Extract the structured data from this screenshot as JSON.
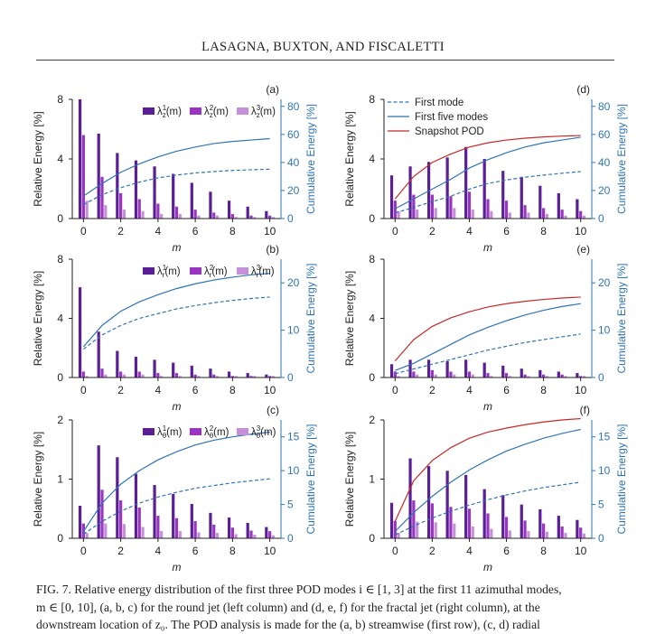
{
  "header": {
    "running_title": "LASAGNA, BUXTON, AND FISCALETTI"
  },
  "colors": {
    "lambda1": "#5b1f95",
    "lambda2": "#9a35c2",
    "lambda3": "#c690d8",
    "cumulative": "#2e74b5",
    "snapshot": "#c62828",
    "axis": "#222222"
  },
  "axes_common": {
    "xlabel": "m",
    "ylabel_left": "Relative Energy [%]",
    "ylabel_right": "Cumulative Energy [%]",
    "x_ticks": [
      0,
      2,
      4,
      6,
      8,
      10
    ],
    "xlim": [
      -0.6,
      10.6
    ]
  },
  "legends": {
    "a": [
      "λ¹z(m)",
      "λ²z(m)",
      "λ³z(m)"
    ],
    "b": [
      "λ¹r(m)",
      "λ²r(m)",
      "λ³r(m)"
    ],
    "c": [
      "λ¹θ(m)",
      "λ²θ(m)",
      "λ³θ(m)"
    ],
    "d": [
      "First mode",
      "First five modes",
      "Snapshot POD"
    ]
  },
  "chart_data": [
    {
      "panel": "(a)",
      "type": "bar",
      "group": "round jet, streamwise",
      "x": [
        0,
        1,
        2,
        3,
        4,
        5,
        6,
        7,
        8,
        9,
        10
      ],
      "ylim_left": [
        0,
        8
      ],
      "yticks_left": [
        0,
        4,
        8
      ],
      "ylim_right": [
        0,
        85
      ],
      "yticks_right": [
        0,
        20,
        40,
        60,
        80
      ],
      "bars": {
        "lambda1": [
          8.0,
          5.7,
          4.4,
          3.9,
          3.5,
          3.0,
          2.4,
          1.8,
          1.2,
          0.8,
          0.5
        ],
        "lambda2": [
          5.6,
          2.8,
          1.7,
          1.3,
          1.0,
          0.8,
          0.6,
          0.4,
          0.3,
          0.2,
          0.2
        ],
        "lambda3": [
          1.2,
          0.9,
          0.6,
          0.5,
          0.3,
          0.3,
          0.2,
          0.2,
          0.1,
          0.1,
          0.1
        ]
      },
      "curves": {
        "first_mode": [
          10,
          17,
          22,
          26,
          29,
          31,
          32.5,
          33.5,
          34.3,
          34.8,
          35.2
        ],
        "first_five_modes": [
          16,
          25,
          33,
          39,
          44,
          48,
          51,
          53.5,
          55,
          56,
          57
        ]
      }
    },
    {
      "panel": "(b)",
      "type": "bar",
      "group": "round jet, radial",
      "x": [
        0,
        1,
        2,
        3,
        4,
        5,
        6,
        7,
        8,
        9,
        10
      ],
      "ylim_left": [
        0,
        8
      ],
      "yticks_left": [
        0,
        4,
        8
      ],
      "ylim_right": [
        0,
        25
      ],
      "yticks_right": [
        0,
        10,
        20
      ],
      "bars": {
        "lambda1": [
          6.1,
          3.1,
          1.8,
          1.4,
          1.2,
          1.0,
          0.8,
          0.6,
          0.4,
          0.3,
          0.2
        ],
        "lambda2": [
          0.4,
          0.6,
          0.4,
          0.4,
          0.3,
          0.3,
          0.2,
          0.2,
          0.1,
          0.1,
          0.1
        ],
        "lambda3": [
          0.1,
          0.2,
          0.2,
          0.2,
          0.1,
          0.1,
          0.1,
          0.1,
          0.1,
          0.1,
          0.1
        ]
      },
      "curves": {
        "first_mode": [
          6,
          9,
          11,
          12.5,
          13.5,
          14.5,
          15.2,
          15.8,
          16.3,
          16.7,
          17
        ],
        "first_five_modes": [
          6.5,
          11,
          14,
          16,
          17.5,
          18.8,
          19.8,
          20.6,
          21.2,
          21.7,
          22
        ]
      }
    },
    {
      "panel": "(c)",
      "type": "bar",
      "group": "round jet, azimuthal",
      "x": [
        0,
        1,
        2,
        3,
        4,
        5,
        6,
        7,
        8,
        9,
        10
      ],
      "ylim_left": [
        0,
        2
      ],
      "yticks_left": [
        0,
        1,
        2
      ],
      "ylim_right": [
        0,
        17.5
      ],
      "yticks_right": [
        0,
        5,
        10,
        15
      ],
      "bars": {
        "lambda1": [
          0.55,
          1.57,
          1.37,
          1.09,
          0.9,
          0.75,
          0.58,
          0.43,
          0.35,
          0.26,
          0.19
        ],
        "lambda2": [
          0.25,
          0.82,
          0.64,
          0.52,
          0.38,
          0.34,
          0.29,
          0.23,
          0.18,
          0.13,
          0.12
        ],
        "lambda3": [
          0.09,
          0.25,
          0.24,
          0.19,
          0.12,
          0.12,
          0.1,
          0.09,
          0.07,
          0.06,
          0.05
        ]
      },
      "curves": {
        "first_mode": [
          0.6,
          2.5,
          4.0,
          5.2,
          6.1,
          6.8,
          7.4,
          7.8,
          8.2,
          8.5,
          8.8
        ],
        "first_five_modes": [
          1.0,
          5.2,
          8.0,
          10.0,
          11.6,
          12.8,
          13.8,
          14.5,
          15.0,
          15.4,
          15.7
        ]
      }
    },
    {
      "panel": "(d)",
      "type": "bar",
      "group": "fractal jet, streamwise",
      "x": [
        0,
        1,
        2,
        3,
        4,
        5,
        6,
        7,
        8,
        9,
        10
      ],
      "ylim_left": [
        0,
        8
      ],
      "yticks_left": [
        0,
        4,
        8
      ],
      "ylim_right": [
        0,
        85
      ],
      "yticks_right": [
        0,
        20,
        40,
        60,
        80
      ],
      "bars": {
        "lambda1": [
          2.9,
          3.5,
          3.8,
          4.1,
          4.8,
          4.0,
          3.2,
          2.8,
          2.2,
          1.7,
          1.3
        ],
        "lambda2": [
          1.2,
          1.6,
          1.6,
          1.5,
          1.8,
          1.3,
          1.2,
          0.9,
          0.7,
          0.6,
          0.5
        ],
        "lambda3": [
          0.5,
          0.6,
          0.7,
          0.7,
          0.6,
          0.5,
          0.4,
          0.4,
          0.3,
          0.2,
          0.2
        ]
      },
      "curves": {
        "first_mode": [
          4,
          8,
          12,
          16,
          21,
          25,
          27.5,
          29.5,
          31,
          32.3,
          33.5
        ],
        "first_five_modes": [
          7,
          14,
          21,
          28,
          36,
          42,
          47,
          51,
          54,
          56,
          58
        ],
        "snapshot_pod": [
          14,
          30,
          40,
          46,
          51,
          54,
          56,
          57.3,
          58.2,
          58.8,
          59.2
        ]
      }
    },
    {
      "panel": "(e)",
      "type": "bar",
      "group": "fractal jet, radial",
      "x": [
        0,
        1,
        2,
        3,
        4,
        5,
        6,
        7,
        8,
        9,
        10
      ],
      "ylim_left": [
        0,
        8
      ],
      "yticks_left": [
        0,
        4,
        8
      ],
      "ylim_right": [
        0,
        25
      ],
      "yticks_right": [
        0,
        10,
        20
      ],
      "bars": {
        "lambda1": [
          0.9,
          1.2,
          1.2,
          1.1,
          1.2,
          1.0,
          0.8,
          0.6,
          0.5,
          0.4,
          0.3
        ],
        "lambda2": [
          0.4,
          0.4,
          0.5,
          0.4,
          0.4,
          0.3,
          0.3,
          0.2,
          0.2,
          0.2,
          0.1
        ],
        "lambda3": [
          0.1,
          0.2,
          0.2,
          0.2,
          0.2,
          0.1,
          0.1,
          0.1,
          0.1,
          0.1,
          0.1
        ]
      },
      "curves": {
        "first_mode": [
          0.8,
          1.8,
          2.8,
          3.8,
          4.8,
          5.8,
          6.6,
          7.4,
          8.0,
          8.6,
          9.2
        ],
        "first_five_modes": [
          1.5,
          3.0,
          5.0,
          7.0,
          9.0,
          10.6,
          12.0,
          13.2,
          14.2,
          15.0,
          15.6
        ],
        "snapshot_pod": [
          3.5,
          8.0,
          10.8,
          12.6,
          13.9,
          14.9,
          15.6,
          16.1,
          16.5,
          16.8,
          17.0
        ]
      }
    },
    {
      "panel": "(f)",
      "type": "bar",
      "group": "fractal jet, azimuthal",
      "x": [
        0,
        1,
        2,
        3,
        4,
        5,
        6,
        7,
        8,
        9,
        10
      ],
      "ylim_left": [
        0,
        2
      ],
      "yticks_left": [
        0,
        1,
        2
      ],
      "ylim_right": [
        0,
        17.5
      ],
      "yticks_right": [
        0,
        5,
        10,
        15
      ],
      "bars": {
        "lambda1": [
          0.6,
          1.35,
          1.22,
          1.14,
          1.07,
          0.83,
          0.73,
          0.57,
          0.49,
          0.38,
          0.31
        ],
        "lambda2": [
          0.29,
          0.64,
          0.59,
          0.53,
          0.5,
          0.42,
          0.36,
          0.3,
          0.25,
          0.2,
          0.18
        ],
        "lambda3": [
          0.09,
          0.28,
          0.27,
          0.25,
          0.2,
          0.16,
          0.13,
          0.12,
          0.11,
          0.09,
          0.08
        ]
      },
      "curves": {
        "first_mode": [
          0.5,
          1.8,
          3.0,
          4.0,
          4.9,
          5.7,
          6.4,
          7.0,
          7.5,
          7.9,
          8.3
        ],
        "first_five_modes": [
          1.0,
          3.8,
          6.2,
          8.3,
          10.1,
          11.6,
          12.9,
          13.9,
          14.8,
          15.5,
          16.1
        ],
        "snapshot_pod": [
          2.5,
          8.5,
          11.5,
          13.4,
          14.8,
          15.7,
          16.3,
          16.8,
          17.2,
          17.5,
          17.7
        ]
      }
    }
  ],
  "caption": {
    "lines": [
      "FIG. 7. Relative energy distribution of the first three POD modes i ∈ [1, 3] at the first 11 azimuthal modes,",
      "m ∈ [0, 10], (a, b, c) for the round jet (left column) and (d, e, f) for the fractal jet (right column), at the",
      "downstream location of z₀. The POD analysis is made for the (a, b) streamwise (first row), (c, d) radial"
    ]
  }
}
